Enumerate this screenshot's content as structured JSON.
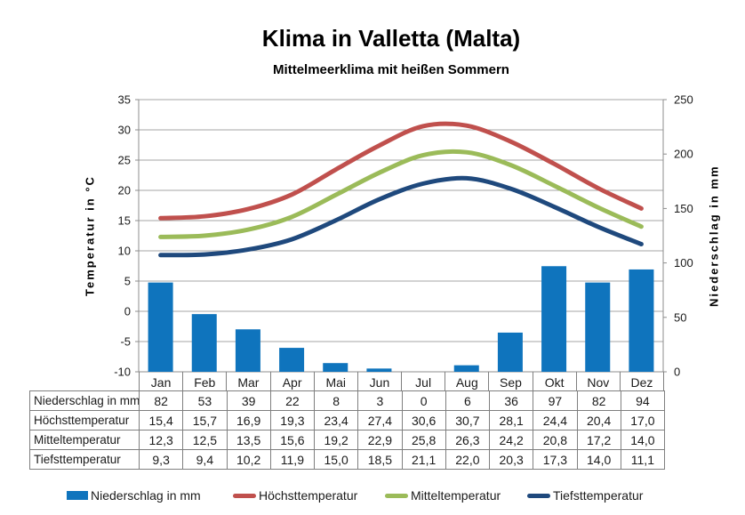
{
  "header": {
    "title": "Klima in Valletta (Malta)",
    "subtitle": "Mittelmeerklima mit heißen Sommern"
  },
  "chart_data": {
    "type": "combo-bar-line",
    "categories": [
      "Jan",
      "Feb",
      "Mar",
      "Apr",
      "Mai",
      "Jun",
      "Jul",
      "Aug",
      "Sep",
      "Okt",
      "Nov",
      "Dez"
    ],
    "series": [
      {
        "name": "Niederschlag in mm",
        "type": "bar",
        "axis": "right",
        "color": "#0F74BD",
        "values": [
          82,
          53,
          39,
          22,
          8,
          3,
          0,
          6,
          36,
          97,
          82,
          94
        ]
      },
      {
        "name": "Höchsttemperatur",
        "type": "line",
        "axis": "left",
        "color": "#C0504D",
        "values": [
          15.4,
          15.7,
          16.9,
          19.3,
          23.4,
          27.4,
          30.6,
          30.7,
          28.1,
          24.4,
          20.4,
          17.0
        ]
      },
      {
        "name": "Mitteltemperatur",
        "type": "line",
        "axis": "left",
        "color": "#9BBB59",
        "values": [
          12.3,
          12.5,
          13.5,
          15.6,
          19.2,
          22.9,
          25.8,
          26.3,
          24.2,
          20.8,
          17.2,
          14.0
        ]
      },
      {
        "name": "Tiefsttemperatur",
        "type": "line",
        "axis": "left",
        "color": "#1F497D",
        "values": [
          9.3,
          9.4,
          10.2,
          11.9,
          15.0,
          18.5,
          21.1,
          22.0,
          20.3,
          17.3,
          14.0,
          11.1
        ]
      }
    ],
    "ylabel": "Temperatur in °C",
    "y2label": "Niederschlag in mm",
    "ylim": [
      -10,
      35
    ],
    "ystep": 5,
    "y2lim": [
      0,
      250
    ],
    "y2step": 50,
    "grid": "horizontal",
    "legend_position": "bottom",
    "grid_color": "#A6A6A6",
    "axis_color": "#8C8C8C",
    "tick_label_color": "#1a1a1a"
  },
  "table": {
    "rows": [
      {
        "label": "Niederschlag in mm",
        "values": [
          "82",
          "53",
          "39",
          "22",
          "8",
          "3",
          "0",
          "6",
          "36",
          "97",
          "82",
          "94"
        ]
      },
      {
        "label": "Höchsttemperatur",
        "values": [
          "15,4",
          "15,7",
          "16,9",
          "19,3",
          "23,4",
          "27,4",
          "30,6",
          "30,7",
          "28,1",
          "24,4",
          "20,4",
          "17,0"
        ]
      },
      {
        "label": "Mitteltemperatur",
        "values": [
          "12,3",
          "12,5",
          "13,5",
          "15,6",
          "19,2",
          "22,9",
          "25,8",
          "26,3",
          "24,2",
          "20,8",
          "17,2",
          "14,0"
        ]
      },
      {
        "label": "Tiefsttemperatur",
        "values": [
          "9,3",
          "9,4",
          "10,2",
          "11,9",
          "15,0",
          "18,5",
          "21,1",
          "22,0",
          "20,3",
          "17,3",
          "14,0",
          "11,1"
        ]
      }
    ]
  },
  "legend": {
    "items": [
      {
        "label": "Niederschlag in mm",
        "marker": "bar",
        "color": "#0F74BD"
      },
      {
        "label": "Höchsttemperatur",
        "marker": "line",
        "color": "#C0504D"
      },
      {
        "label": "Mitteltemperatur",
        "marker": "line",
        "color": "#9BBB59"
      },
      {
        "label": "Tiefsttemperatur",
        "marker": "line",
        "color": "#1F497D"
      }
    ]
  }
}
